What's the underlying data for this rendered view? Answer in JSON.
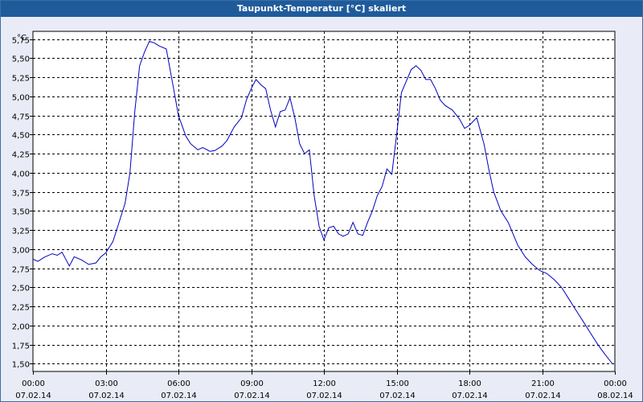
{
  "window": {
    "title": "Taupunkt-Temperatur [°C] skaliert"
  },
  "chart_data": {
    "type": "line",
    "title": "Taupunkt-Temperatur [°C] skaliert",
    "ylabel": "°C",
    "xlabel": "",
    "ylim": [
      1.4,
      5.85
    ],
    "xlim": [
      0,
      24
    ],
    "grid": true,
    "y_ticks": [
      "5,75",
      "5,50",
      "5,25",
      "5,00",
      "4,75",
      "4,50",
      "4,25",
      "4,00",
      "3,75",
      "3,50",
      "3,25",
      "3,00",
      "2,75",
      "2,50",
      "2,25",
      "2,00",
      "1,75",
      "1,50"
    ],
    "y_tick_values": [
      5.75,
      5.5,
      5.25,
      5.0,
      4.75,
      4.5,
      4.25,
      4.0,
      3.75,
      3.5,
      3.25,
      3.0,
      2.75,
      2.5,
      2.25,
      2.0,
      1.75,
      1.5
    ],
    "x_ticks": [
      {
        "time": "00:00",
        "date": "07.02.14"
      },
      {
        "time": "03:00",
        "date": "07.02.14"
      },
      {
        "time": "06:00",
        "date": "07.02.14"
      },
      {
        "time": "09:00",
        "date": "07.02.14"
      },
      {
        "time": "12:00",
        "date": "07.02.14"
      },
      {
        "time": "15:00",
        "date": "07.02.14"
      },
      {
        "time": "18:00",
        "date": "07.02.14"
      },
      {
        "time": "21:00",
        "date": "07.02.14"
      },
      {
        "time": "00:00",
        "date": "08.02.14"
      }
    ],
    "x_tick_values": [
      0,
      3,
      6,
      9,
      12,
      15,
      18,
      21,
      24
    ],
    "line_color": "#0000c0",
    "series": [
      {
        "x": [
          0,
          0.2,
          0.5,
          0.8,
          1.0,
          1.2,
          1.5,
          1.7,
          2.0,
          2.3,
          2.6,
          2.8,
          3.0,
          3.3,
          3.5,
          3.8,
          4.0,
          4.2,
          4.4,
          4.6,
          4.8,
          5.0,
          5.2,
          5.5,
          5.8,
          6.0,
          6.3,
          6.5,
          6.8,
          7.0,
          7.3,
          7.5,
          7.8,
          8.0,
          8.3,
          8.6,
          8.8,
          9.0,
          9.2,
          9.4,
          9.6,
          9.8,
          10.0,
          10.2,
          10.4,
          10.6,
          10.8,
          11.0,
          11.2,
          11.4,
          11.6,
          11.8,
          12.0,
          12.2,
          12.4,
          12.6,
          12.8,
          13.0,
          13.2,
          13.4,
          13.6,
          13.8,
          14.0,
          14.2,
          14.4,
          14.6,
          14.8,
          15.0,
          15.2,
          15.4,
          15.6,
          15.8,
          16.0,
          16.2,
          16.4,
          16.6,
          16.8,
          17.0,
          17.3,
          17.6,
          17.8,
          18.0,
          18.3,
          18.6,
          18.8,
          19.0,
          19.3,
          19.6,
          19.8,
          20.0,
          20.3,
          20.6,
          20.9,
          21.2,
          21.5,
          21.8,
          22.1,
          22.4,
          22.7,
          23.0,
          23.3,
          23.6,
          23.9
        ],
        "y": [
          2.87,
          2.84,
          2.9,
          2.94,
          2.92,
          2.96,
          2.78,
          2.9,
          2.86,
          2.8,
          2.82,
          2.9,
          2.95,
          3.1,
          3.3,
          3.6,
          4.0,
          4.8,
          5.4,
          5.58,
          5.72,
          5.7,
          5.66,
          5.62,
          5.1,
          4.75,
          4.48,
          4.38,
          4.3,
          4.33,
          4.28,
          4.29,
          4.35,
          4.42,
          4.6,
          4.72,
          4.95,
          5.1,
          5.22,
          5.15,
          5.1,
          4.82,
          4.6,
          4.8,
          4.82,
          4.98,
          4.72,
          4.38,
          4.25,
          4.3,
          3.7,
          3.3,
          3.12,
          3.28,
          3.3,
          3.2,
          3.17,
          3.2,
          3.35,
          3.2,
          3.18,
          3.35,
          3.5,
          3.7,
          3.82,
          4.05,
          3.98,
          4.5,
          5.05,
          5.2,
          5.35,
          5.4,
          5.34,
          5.22,
          5.22,
          5.1,
          4.95,
          4.88,
          4.82,
          4.7,
          4.58,
          4.62,
          4.72,
          4.38,
          4.05,
          3.75,
          3.5,
          3.35,
          3.2,
          3.05,
          2.9,
          2.8,
          2.72,
          2.68,
          2.6,
          2.5,
          2.35,
          2.2,
          2.05,
          1.9,
          1.75,
          1.62,
          1.5
        ]
      }
    ]
  }
}
